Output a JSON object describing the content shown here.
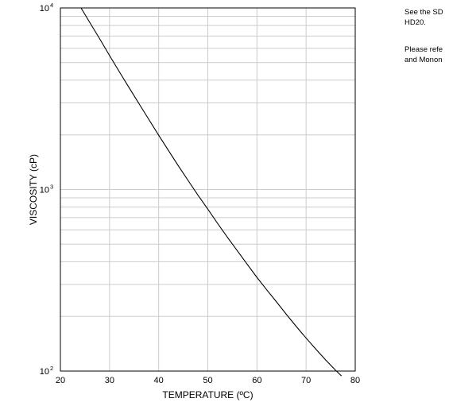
{
  "side_notes": {
    "note_1_line_1": "See the SD",
    "note_1_line_2": "HD20.",
    "note_2_line_1": "Please refe",
    "note_2_line_2": "and Monon"
  },
  "chart_data": {
    "type": "line",
    "title": "",
    "xlabel": "TEMPERATURE (ºC)",
    "ylabel": "VISCOSITY (cP)",
    "x_scale": "linear",
    "y_scale": "log",
    "xlim": [
      20,
      80
    ],
    "ylim": [
      100,
      10000
    ],
    "x_ticks": [
      20,
      30,
      40,
      50,
      60,
      70,
      80
    ],
    "y_tick_labels": [
      {
        "base": "10",
        "exp": "2",
        "value": 100
      },
      {
        "base": "10",
        "exp": "3",
        "value": 1000
      },
      {
        "base": "10",
        "exp": "4",
        "value": 10000
      }
    ],
    "grid": true,
    "line_color": "#000000",
    "grid_color": "#cccccc",
    "series": [
      {
        "x": [
          24.2,
          26,
          28,
          30,
          32,
          34,
          36,
          38,
          40,
          42,
          44,
          46,
          48,
          50,
          52,
          54,
          56,
          58,
          60,
          62,
          64,
          66,
          68,
          70,
          72,
          74,
          76,
          77.2
        ],
        "y": [
          10000,
          8300,
          6760,
          5470,
          4450,
          3630,
          2970,
          2430,
          1990,
          1640,
          1350,
          1120,
          930,
          780,
          650,
          545,
          460,
          388,
          328,
          280,
          240,
          205,
          176,
          152,
          132,
          115,
          101,
          94
        ]
      }
    ]
  }
}
